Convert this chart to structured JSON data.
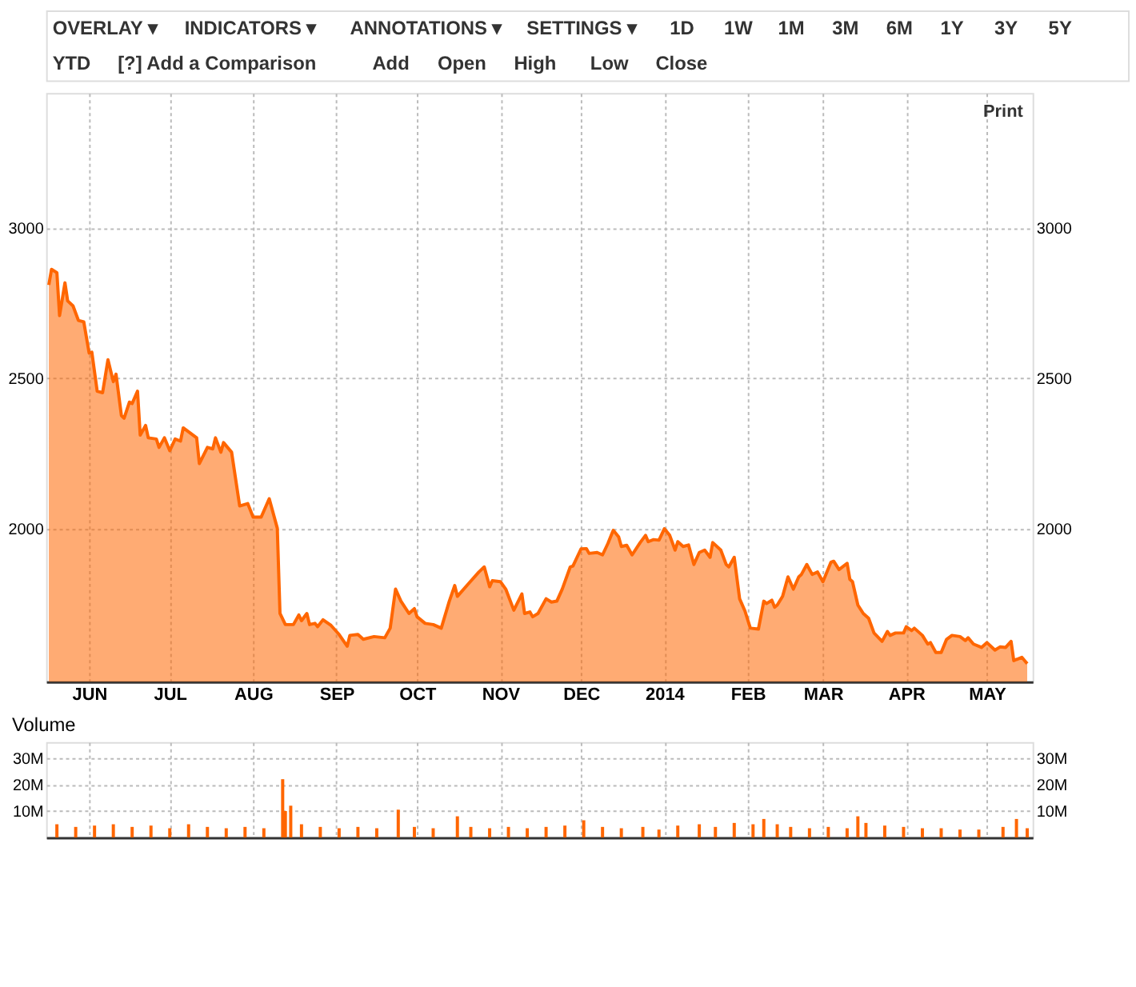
{
  "chart_data": [
    {
      "type": "other",
      "annotations": [
        "OVERLAY ▾",
        "INDICATORS ▾",
        "ANNOTATIONS ▾",
        "SETTINGS ▾",
        "1D",
        "1W",
        "1M",
        "3M",
        "6M",
        "1Y",
        "3Y",
        "5Y",
        "YTD",
        "[?] Add a Comparison",
        "Add",
        "Open",
        "High",
        "Low",
        "Close"
      ]
    },
    {
      "type": "area",
      "annotations": [
        "Print"
      ],
      "x": [
        "2013-05-17",
        "2013-05-18",
        "2013-05-20",
        "2013-05-21",
        "2013-05-23",
        "2013-05-24",
        "2013-05-26",
        "2013-05-28",
        "2013-05-30",
        "2013-06-01",
        "2013-06-02",
        "2013-06-04",
        "2013-06-06",
        "2013-06-08",
        "2013-06-10",
        "2013-06-11",
        "2013-06-13",
        "2013-06-14",
        "2013-06-16",
        "2013-06-17",
        "2013-06-19",
        "2013-06-20",
        "2013-06-22",
        "2013-06-23",
        "2013-06-26",
        "2013-06-27",
        "2013-06-29",
        "2013-07-01",
        "2013-07-03",
        "2013-07-05",
        "2013-07-06",
        "2013-07-11",
        "2013-07-12",
        "2013-07-15",
        "2013-07-17",
        "2013-07-18",
        "2013-07-20",
        "2013-07-21",
        "2013-07-24",
        "2013-07-27",
        "2013-07-30",
        "2013-08-01",
        "2013-08-04",
        "2013-08-07",
        "2013-08-10",
        "2013-08-11",
        "2013-08-13",
        "2013-08-16",
        "2013-08-18",
        "2013-08-19",
        "2013-08-21",
        "2013-08-22",
        "2013-08-24",
        "2013-08-25",
        "2013-08-27",
        "2013-08-30",
        "2013-09-02",
        "2013-09-05",
        "2013-09-06",
        "2013-09-09",
        "2013-09-11",
        "2013-09-15",
        "2013-09-19",
        "2013-09-21",
        "2013-09-23",
        "2013-09-25",
        "2013-09-28",
        "2013-09-30",
        "2013-10-01",
        "2013-10-04",
        "2013-10-07",
        "2013-10-10",
        "2013-10-13",
        "2013-10-15",
        "2013-10-16",
        "2013-10-20",
        "2013-10-24",
        "2013-10-26",
        "2013-10-28",
        "2013-10-29",
        "2013-11-01",
        "2013-11-03",
        "2013-11-06",
        "2013-11-09",
        "2013-11-10",
        "2013-11-12",
        "2013-11-13",
        "2013-11-15",
        "2013-11-18",
        "2013-11-20",
        "2013-11-22",
        "2013-11-24",
        "2013-11-27",
        "2013-11-28",
        "2013-12-01",
        "2013-12-03",
        "2013-12-04",
        "2013-12-07",
        "2013-12-09",
        "2013-12-11",
        "2013-12-13",
        "2013-12-15",
        "2013-12-16",
        "2013-12-18",
        "2013-12-20",
        "2013-12-23",
        "2013-12-25",
        "2013-12-26",
        "2013-12-28",
        "2013-12-30",
        "2014-01-01",
        "2014-01-03",
        "2014-01-05",
        "2014-01-06",
        "2014-01-08",
        "2014-01-10",
        "2014-01-12",
        "2014-01-14",
        "2014-01-16",
        "2014-01-18",
        "2014-01-19",
        "2014-01-22",
        "2014-01-24",
        "2014-01-25",
        "2014-01-27",
        "2014-01-29",
        "2014-01-31",
        "2014-02-02",
        "2014-02-05",
        "2014-02-07",
        "2014-02-08",
        "2014-02-10",
        "2014-02-11",
        "2014-02-12",
        "2014-02-14",
        "2014-02-16",
        "2014-02-18",
        "2014-02-20",
        "2014-02-21",
        "2014-02-23",
        "2014-02-25",
        "2014-02-27",
        "2014-03-01",
        "2014-03-04",
        "2014-03-05",
        "2014-03-07",
        "2014-03-10",
        "2014-03-11",
        "2014-03-12",
        "2014-03-14",
        "2014-03-16",
        "2014-03-18",
        "2014-03-20",
        "2014-03-23",
        "2014-03-25",
        "2014-03-26",
        "2014-03-28",
        "2014-03-31",
        "2014-04-01",
        "2014-04-03",
        "2014-04-04",
        "2014-04-07",
        "2014-04-09",
        "2014-04-10",
        "2014-04-12",
        "2014-04-14",
        "2014-04-16",
        "2014-04-18",
        "2014-04-21",
        "2014-04-23",
        "2014-04-24",
        "2014-04-26",
        "2014-04-29",
        "2014-05-01",
        "2014-05-04",
        "2014-05-06",
        "2014-05-08",
        "2014-05-10",
        "2014-05-11",
        "2014-05-14",
        "2014-05-16"
      ],
      "series": [
        {
          "color": "#ff6600",
          "values": [
            2811,
            2863,
            2852,
            2709,
            2818,
            2758,
            2741,
            2693,
            2688,
            2584,
            2587,
            2457,
            2452,
            2562,
            2489,
            2514,
            2376,
            2367,
            2421,
            2416,
            2457,
            2311,
            2343,
            2302,
            2298,
            2270,
            2302,
            2259,
            2298,
            2291,
            2335,
            2302,
            2216,
            2270,
            2265,
            2302,
            2254,
            2286,
            2254,
            2075,
            2083,
            2038,
            2038,
            2099,
            2001,
            1717,
            1680,
            1680,
            1712,
            1693,
            1717,
            1680,
            1684,
            1673,
            1696,
            1677,
            1647,
            1608,
            1644,
            1647,
            1631,
            1640,
            1636,
            1668,
            1798,
            1758,
            1717,
            1733,
            1706,
            1684,
            1680,
            1668,
            1758,
            1810,
            1774,
            1815,
            1855,
            1872,
            1806,
            1826,
            1823,
            1798,
            1728,
            1782,
            1717,
            1722,
            1706,
            1717,
            1766,
            1755,
            1758,
            1798,
            1872,
            1875,
            1932,
            1933,
            1917,
            1920,
            1912,
            1950,
            1994,
            1972,
            1940,
            1944,
            1912,
            1953,
            1977,
            1956,
            1963,
            1961,
            1999,
            1977,
            1928,
            1956,
            1940,
            1945,
            1880,
            1920,
            1928,
            1904,
            1953,
            1928,
            1880,
            1872,
            1904,
            1766,
            1725,
            1668,
            1665,
            1758,
            1750,
            1761,
            1738,
            1745,
            1774,
            1839,
            1798,
            1839,
            1847,
            1880,
            1847,
            1855,
            1823,
            1888,
            1891,
            1863,
            1884,
            1831,
            1823,
            1745,
            1717,
            1701,
            1652,
            1624,
            1657,
            1644,
            1652,
            1652,
            1673,
            1660,
            1668,
            1644,
            1615,
            1620,
            1587,
            1587,
            1631,
            1644,
            1640,
            1627,
            1636,
            1615,
            1604,
            1620,
            1595,
            1606,
            1604,
            1624,
            1560,
            1571,
            1550
          ]
        }
      ],
      "xlim": [
        "2013-05-16",
        "2014-05-18"
      ],
      "xticks": [
        {
          "value": "2013-06-01",
          "label": "JUN"
        },
        {
          "value": "2013-07-01",
          "label": "JUL"
        },
        {
          "value": "2013-08-01",
          "label": "AUG"
        },
        {
          "value": "2013-09-01",
          "label": "SEP"
        },
        {
          "value": "2013-10-01",
          "label": "OCT"
        },
        {
          "value": "2013-11-01",
          "label": "NOV"
        },
        {
          "value": "2013-12-01",
          "label": "DEC"
        },
        {
          "value": "2014-01-01",
          "label": "2014"
        },
        {
          "value": "2014-02-01",
          "label": "FEB"
        },
        {
          "value": "2014-03-01",
          "label": "MAR"
        },
        {
          "value": "2014-04-01",
          "label": "APR"
        },
        {
          "value": "2014-05-01",
          "label": "MAY"
        }
      ],
      "ylim": [
        1490,
        3450
      ],
      "yticks": [
        2000,
        2500,
        3000
      ],
      "y2lim": [
        1490,
        3450
      ],
      "y2ticks": [
        2000,
        2500,
        3000
      ],
      "grid": true
    },
    {
      "type": "bar",
      "title": "Volume",
      "tick_labels": "y",
      "x": [
        "2013-05-20",
        "2013-05-27",
        "2013-06-03",
        "2013-06-10",
        "2013-06-17",
        "2013-06-24",
        "2013-07-01",
        "2013-07-08",
        "2013-07-15",
        "2013-07-22",
        "2013-07-29",
        "2013-08-05",
        "2013-08-12",
        "2013-08-13",
        "2013-08-15",
        "2013-08-19",
        "2013-08-26",
        "2013-09-02",
        "2013-09-09",
        "2013-09-16",
        "2013-09-24",
        "2013-09-30",
        "2013-10-07",
        "2013-10-16",
        "2013-10-21",
        "2013-10-28",
        "2013-11-04",
        "2013-11-11",
        "2013-11-18",
        "2013-11-25",
        "2013-12-02",
        "2013-12-09",
        "2013-12-16",
        "2013-12-24",
        "2013-12-30",
        "2014-01-06",
        "2014-01-14",
        "2014-01-20",
        "2014-01-27",
        "2014-02-03",
        "2014-02-07",
        "2014-02-12",
        "2014-02-17",
        "2014-02-24",
        "2014-03-03",
        "2014-03-10",
        "2014-03-14",
        "2014-03-17",
        "2014-03-24",
        "2014-03-31",
        "2014-04-07",
        "2014-04-14",
        "2014-04-21",
        "2014-04-28",
        "2014-05-07",
        "2014-05-12",
        "2014-05-16"
      ],
      "series": [
        {
          "color": "#ff6600",
          "values": [
            5,
            4,
            4.5,
            5,
            4,
            4.5,
            3.5,
            5,
            4,
            3.5,
            4,
            3.5,
            22,
            10,
            12,
            5,
            4,
            3.5,
            4,
            3.5,
            10.5,
            4,
            3.5,
            8,
            4,
            3.5,
            4,
            3.5,
            4,
            4.5,
            6.5,
            4,
            3.5,
            4,
            3,
            4.5,
            5,
            4,
            5.5,
            5,
            7,
            5,
            4,
            3.5,
            4,
            3.5,
            8,
            5.5,
            4.5,
            4,
            3.5,
            3.5,
            3,
            3,
            4,
            7,
            3.5
          ]
        }
      ],
      "xlim": [
        "2013-05-16",
        "2014-05-18"
      ],
      "xticks": [
        {
          "value": "2013-06-01",
          "label": null
        },
        {
          "value": "2013-07-01",
          "label": null
        },
        {
          "value": "2013-08-01",
          "label": null
        },
        {
          "value": "2013-09-01",
          "label": null
        },
        {
          "value": "2013-10-01",
          "label": null
        },
        {
          "value": "2013-11-01",
          "label": null
        },
        {
          "value": "2013-12-01",
          "label": null
        },
        {
          "value": "2014-01-01",
          "label": null
        },
        {
          "value": "2014-02-01",
          "label": null
        },
        {
          "value": "2014-03-01",
          "label": null
        },
        {
          "value": "2014-04-01",
          "label": null
        },
        {
          "value": "2014-05-01",
          "label": null
        }
      ],
      "ylim": [
        0,
        36
      ],
      "yticks": [
        {
          "value": 10,
          "label": "10M"
        },
        {
          "value": 20,
          "label": "20M"
        },
        {
          "value": 30,
          "label": "30M"
        }
      ],
      "y2lim": [
        0,
        36
      ],
      "y2ticks": [
        {
          "value": 10,
          "label": "10M"
        },
        {
          "value": 20,
          "label": "20M"
        },
        {
          "value": 30,
          "label": "30M"
        }
      ],
      "grid": true
    }
  ]
}
